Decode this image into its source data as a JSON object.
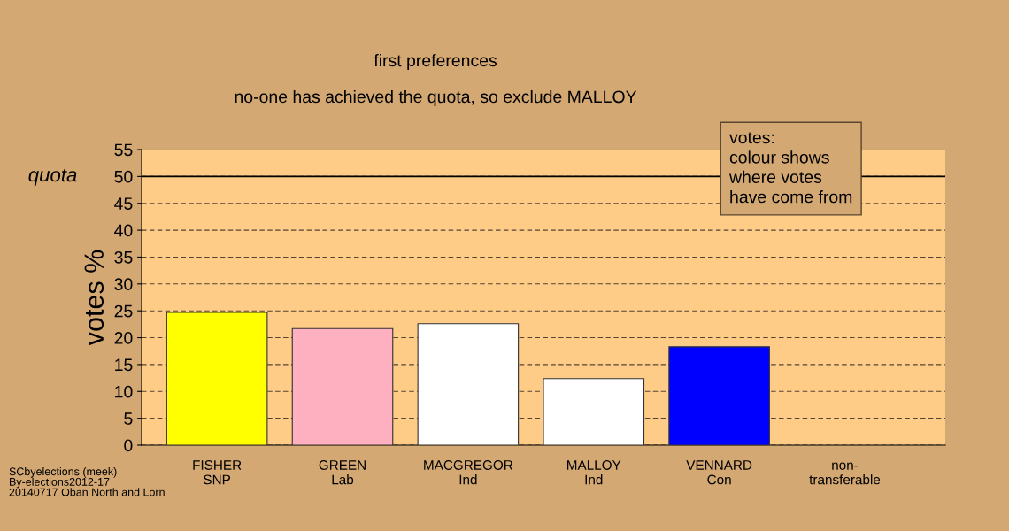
{
  "chart_data": {
    "type": "bar",
    "title": "first preferences",
    "subtitle": "no-one has achieved the quota, so exclude MALLOY",
    "ylabel": "votes %",
    "categories": [
      "FISHER\nSNP",
      "GREEN\nLab",
      "MACGREGOR\nInd",
      "MALLOY\nInd",
      "VENNARD\nCon",
      "non-\ntransferable"
    ],
    "values": [
      24.7,
      21.7,
      22.6,
      12.4,
      18.3,
      null
    ],
    "colors": [
      "#ffff00",
      "#ffb0c0",
      "#ffffff",
      "#ffffff",
      "#0000ff",
      null
    ],
    "ylim": [
      0,
      55
    ],
    "yticks": [
      0,
      5,
      10,
      15,
      20,
      25,
      30,
      35,
      40,
      45,
      50,
      55
    ],
    "grid": "y",
    "ref_lines": [
      {
        "axis": "y",
        "value": 50,
        "label": "quota",
        "color": "#000000",
        "line_style": "solid"
      }
    ],
    "annotations": [
      "votes:\ncolour shows\nwhere votes\nhave come from",
      "SCbyelections (meek)\nBy-elections2012-17\n20140717 Oban North and Lorn"
    ]
  }
}
